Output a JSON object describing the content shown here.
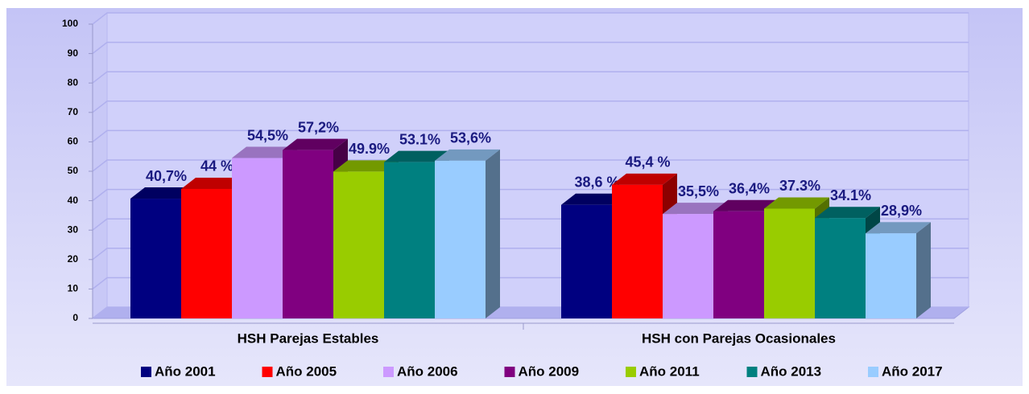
{
  "chart_data": {
    "type": "bar3d",
    "categories": [
      "HSH Parejas Estables",
      "HSH con Parejas Ocasionales"
    ],
    "series": [
      {
        "name": "Año 2001",
        "color": "#000080",
        "values": [
          40.7,
          38.6
        ],
        "value_labels": [
          "40,7%",
          "38,6 %"
        ]
      },
      {
        "name": "Año 2005",
        "color": "#ff0000",
        "values": [
          44,
          45.4
        ],
        "value_labels": [
          "44 %",
          "45,4 %"
        ]
      },
      {
        "name": "Año 2006",
        "color": "#cc99ff",
        "values": [
          54.5,
          35.5
        ],
        "value_labels": [
          "54,5%",
          "35,5%"
        ]
      },
      {
        "name": "Año 2009",
        "color": "#800080",
        "values": [
          57.2,
          36.4
        ],
        "value_labels": [
          "57,2%",
          "36,4%"
        ]
      },
      {
        "name": "Año 2011",
        "color": "#99cc00",
        "values": [
          49.9,
          37.3
        ],
        "value_labels": [
          "49.9%",
          "37.3%"
        ]
      },
      {
        "name": "Año 2013",
        "color": "#008080",
        "values": [
          53.1,
          34.1
        ],
        "value_labels": [
          "53.1%",
          "34.1%"
        ]
      },
      {
        "name": "Año 2017",
        "color": "#99ccff",
        "values": [
          53.6,
          28.9
        ],
        "value_labels": [
          "53,6%",
          "28,9%"
        ]
      }
    ],
    "ylim": [
      0,
      100
    ],
    "yticks": [
      0,
      10,
      20,
      30,
      40,
      50,
      60,
      70,
      80,
      90,
      100
    ],
    "grid": true,
    "legend": "bottom"
  }
}
